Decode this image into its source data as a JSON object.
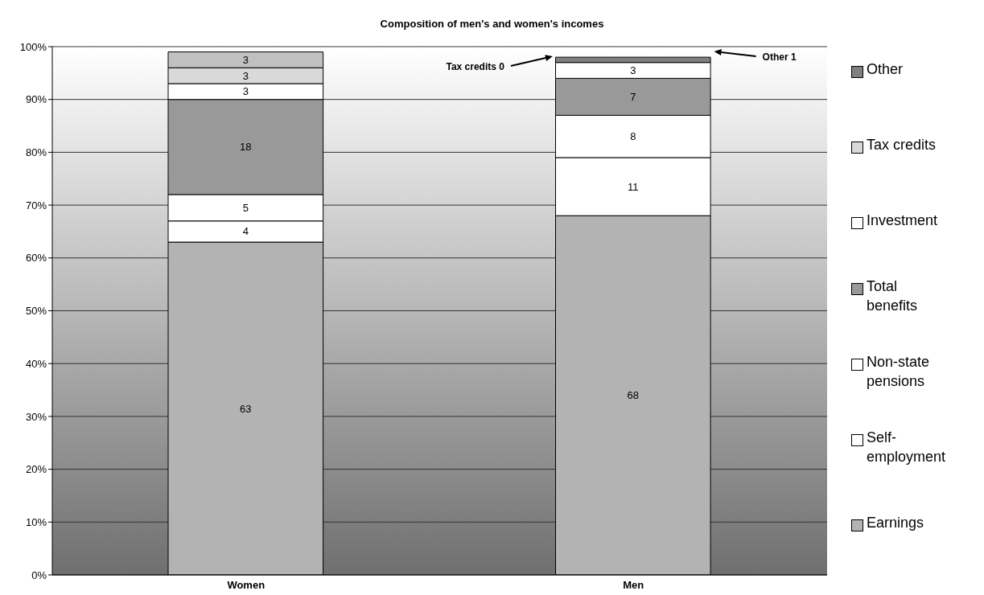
{
  "chart_data": {
    "type": "bar",
    "title": "Composition of men's and women's incomes",
    "categories": [
      "Women",
      "Men"
    ],
    "stacked": true,
    "grid": "y",
    "legend": "right",
    "ylim": [
      0,
      100
    ],
    "yticks": [
      {
        "value": 0,
        "label": "0%"
      },
      {
        "value": 10,
        "label": "10%"
      },
      {
        "value": 20,
        "label": "20%"
      },
      {
        "value": 30,
        "label": "30%"
      },
      {
        "value": 40,
        "label": "40%"
      },
      {
        "value": 50,
        "label": "50%"
      },
      {
        "value": 60,
        "label": "60%"
      },
      {
        "value": 70,
        "label": "70%"
      },
      {
        "value": 80,
        "label": "80%"
      },
      {
        "value": 90,
        "label": "90%"
      },
      {
        "value": 100,
        "label": "100%"
      }
    ],
    "series": [
      {
        "name": "Earnings",
        "color": "#b3b3b3",
        "values": [
          63,
          68
        ],
        "value_labels": [
          "63",
          "68"
        ]
      },
      {
        "name": "Self-employment",
        "color": "#ffffff",
        "values": [
          4,
          11
        ],
        "value_labels": [
          "4",
          "11"
        ]
      },
      {
        "name": "Non-state pensions",
        "color": "#ffffff",
        "values": [
          5,
          8
        ],
        "value_labels": [
          "5",
          "8"
        ]
      },
      {
        "name": "Total benefits",
        "color": "#999999",
        "values": [
          18,
          7
        ],
        "value_labels": [
          "18",
          "7"
        ]
      },
      {
        "name": "Investment",
        "color": "#ffffff",
        "values": [
          3,
          3
        ],
        "value_labels": [
          "3",
          "3"
        ]
      },
      {
        "name": "Tax credits",
        "color": "#d9d9d9",
        "values": [
          3,
          0
        ],
        "value_labels": [
          "3",
          null
        ]
      },
      {
        "name": "Other",
        "color": "#808080",
        "colors": [
          "#c0c0c0",
          "#808080"
        ],
        "values": [
          3,
          1
        ],
        "value_labels": [
          "3",
          null
        ]
      }
    ],
    "annotations": [
      "Tax credits 0",
      "Other 1"
    ]
  }
}
